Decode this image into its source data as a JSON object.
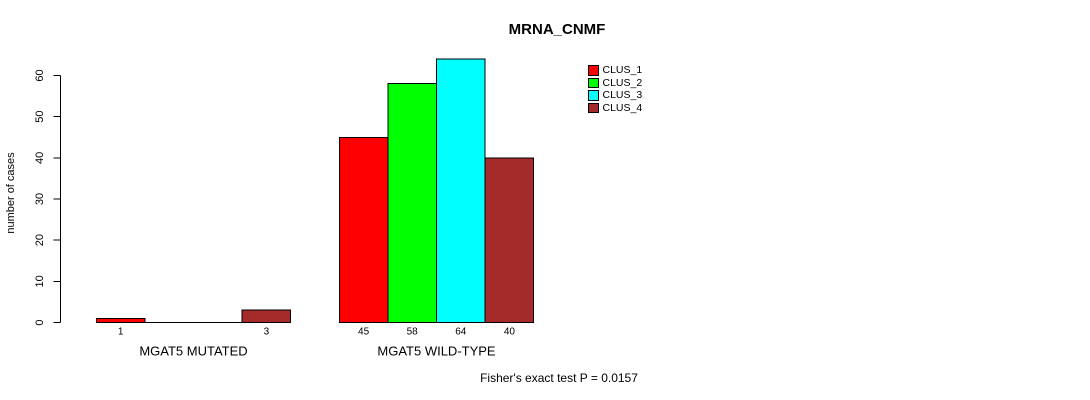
{
  "title": "MRNA_CNMF",
  "y_axis": {
    "label": "number of cases",
    "ticks": [
      0,
      10,
      20,
      30,
      40,
      50,
      60
    ]
  },
  "footnote": "Fisher's exact test P = 0.0157",
  "legend": {
    "items": [
      {
        "label": "CLUS_1",
        "color": "#FF0000"
      },
      {
        "label": "CLUS_2",
        "color": "#00FF00"
      },
      {
        "label": "CLUS_3",
        "color": "#00FFFF"
      },
      {
        "label": "CLUS_4",
        "color": "#A52A2A"
      }
    ]
  },
  "chart_data": {
    "type": "bar",
    "title": "MRNA_CNMF",
    "xlabel": "",
    "ylabel": "number of cases",
    "ylim": [
      0,
      60
    ],
    "yticks": [
      0,
      10,
      20,
      30,
      40,
      50,
      60
    ],
    "grid": false,
    "legend_position": "top-right",
    "series_names": [
      "CLUS_1",
      "CLUS_2",
      "CLUS_3",
      "CLUS_4"
    ],
    "series_colors": [
      "#FF0000",
      "#00FF00",
      "#00FFFF",
      "#A52A2A"
    ],
    "bar_border_color": "#000000",
    "groups": [
      {
        "label": "MGAT5 MUTATED",
        "values": [
          1,
          0,
          0,
          3
        ],
        "bar_labels": [
          "1",
          "",
          "",
          "3"
        ]
      },
      {
        "label": "MGAT5 WILD-TYPE",
        "values": [
          45,
          58,
          64,
          40
        ],
        "bar_labels": [
          "45",
          "58",
          "64",
          "40"
        ]
      }
    ],
    "annotation": "Fisher's exact test P = 0.0157"
  }
}
